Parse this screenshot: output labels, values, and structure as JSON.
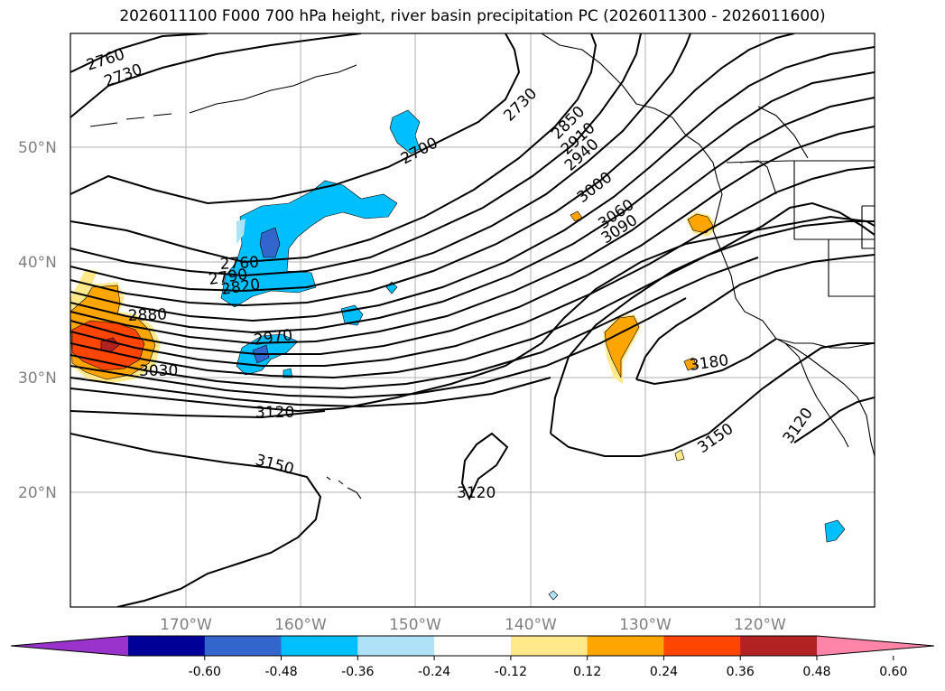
{
  "title": "2026011100 F000 700 hPa height, river basin precipitation PC (2026011300 - 2026011600)",
  "map": {
    "lat_labels": [
      "50°N",
      "40°N",
      "30°N",
      "20°N"
    ],
    "lon_labels": [
      "170°W",
      "160°W",
      "150°W",
      "140°W",
      "130°W",
      "120°W"
    ],
    "contour_labels": [
      "2760",
      "2730",
      "2700",
      "2730",
      "2850",
      "2910",
      "2940",
      "3000",
      "3060",
      "3090",
      "2760",
      "2790",
      "2820",
      "2880",
      "2970",
      "3030",
      "3120",
      "3150",
      "3120",
      "3180",
      "3150",
      "3120"
    ]
  },
  "colorbar": {
    "colors": [
      "#9933cc",
      "#000099",
      "#3366cc",
      "#00bfff",
      "#afe2f8",
      "#ffffff",
      "#ffe98a",
      "#ffa500",
      "#ff4500",
      "#b22222",
      "#ff85a8"
    ],
    "tick_labels": [
      "-0.60",
      "-0.48",
      "-0.36",
      "-0.24",
      "-0.12",
      "0.12",
      "0.24",
      "0.36",
      "0.48",
      "0.60"
    ]
  },
  "colors": {
    "contour": "#000000",
    "grid": "#b0b0b0",
    "axis_label": "#808080"
  }
}
